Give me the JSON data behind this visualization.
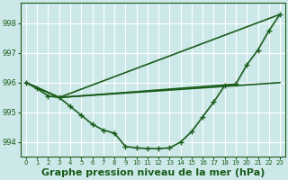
{
  "background_color": "#cce8e8",
  "plot_bg_color": "#cce8e8",
  "grid_color": "#b0d8d8",
  "line_color": "#1a5c1a",
  "marker_color": "#1a5c1a",
  "title": "Graphe pression niveau de la mer (hPa)",
  "xlim": [
    -0.5,
    23.5
  ],
  "ylim": [
    993.5,
    998.7
  ],
  "yticks": [
    994,
    995,
    996,
    997,
    998
  ],
  "xticks": [
    0,
    1,
    2,
    3,
    4,
    5,
    6,
    7,
    8,
    9,
    10,
    11,
    12,
    13,
    14,
    15,
    16,
    17,
    18,
    19,
    20,
    21,
    22,
    23
  ],
  "series": [
    {
      "x": [
        0,
        1,
        2,
        3,
        4,
        5,
        6,
        7,
        8,
        9,
        10,
        11,
        12,
        13,
        14,
        15,
        16,
        17,
        18,
        19,
        20,
        21,
        22,
        23
      ],
      "y": [
        996.0,
        995.8,
        995.55,
        995.5,
        995.2,
        994.9,
        994.6,
        994.4,
        994.3,
        993.85,
        993.8,
        993.78,
        993.78,
        993.8,
        994.0,
        994.35,
        994.85,
        995.35,
        995.9,
        995.95,
        996.6,
        997.1,
        997.75,
        998.3
      ],
      "has_markers": true
    },
    {
      "x": [
        0,
        3,
        23
      ],
      "y": [
        996.0,
        995.5,
        996.0
      ],
      "has_markers": false
    },
    {
      "x": [
        0,
        3,
        23
      ],
      "y": [
        996.0,
        995.5,
        998.3
      ],
      "has_markers": false
    },
    {
      "x": [
        0,
        3,
        19
      ],
      "y": [
        996.0,
        995.5,
        995.95
      ],
      "has_markers": false
    }
  ],
  "title_fontsize": 8,
  "tick_fontsize": 6,
  "line_width": 1.2,
  "marker_size": 4
}
